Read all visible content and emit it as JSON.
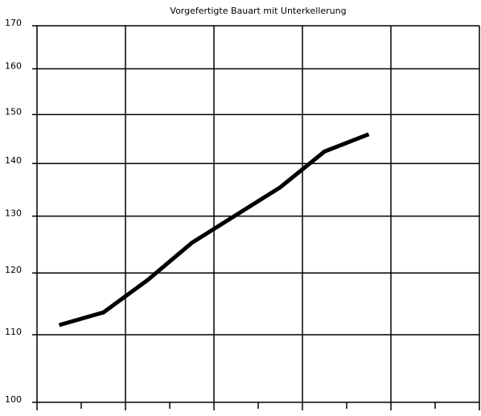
{
  "chart_data": {
    "type": "line",
    "title": "Vorgefertigte Bauart mit Unterkellerung",
    "categories": [
      null,
      null,
      null,
      null,
      null,
      null,
      null,
      null,
      null,
      null
    ],
    "series": [
      {
        "color": "#000000",
        "values": [
          111.5,
          113.5,
          118.8,
          125.2,
          130.2,
          135.4,
          142.4,
          145.9,
          null,
          null
        ]
      }
    ],
    "ylim": [
      100,
      170
    ],
    "yticks": [
      100,
      110,
      120,
      130,
      140,
      150,
      160,
      170
    ],
    "log_scale": true,
    "grid": true
  }
}
